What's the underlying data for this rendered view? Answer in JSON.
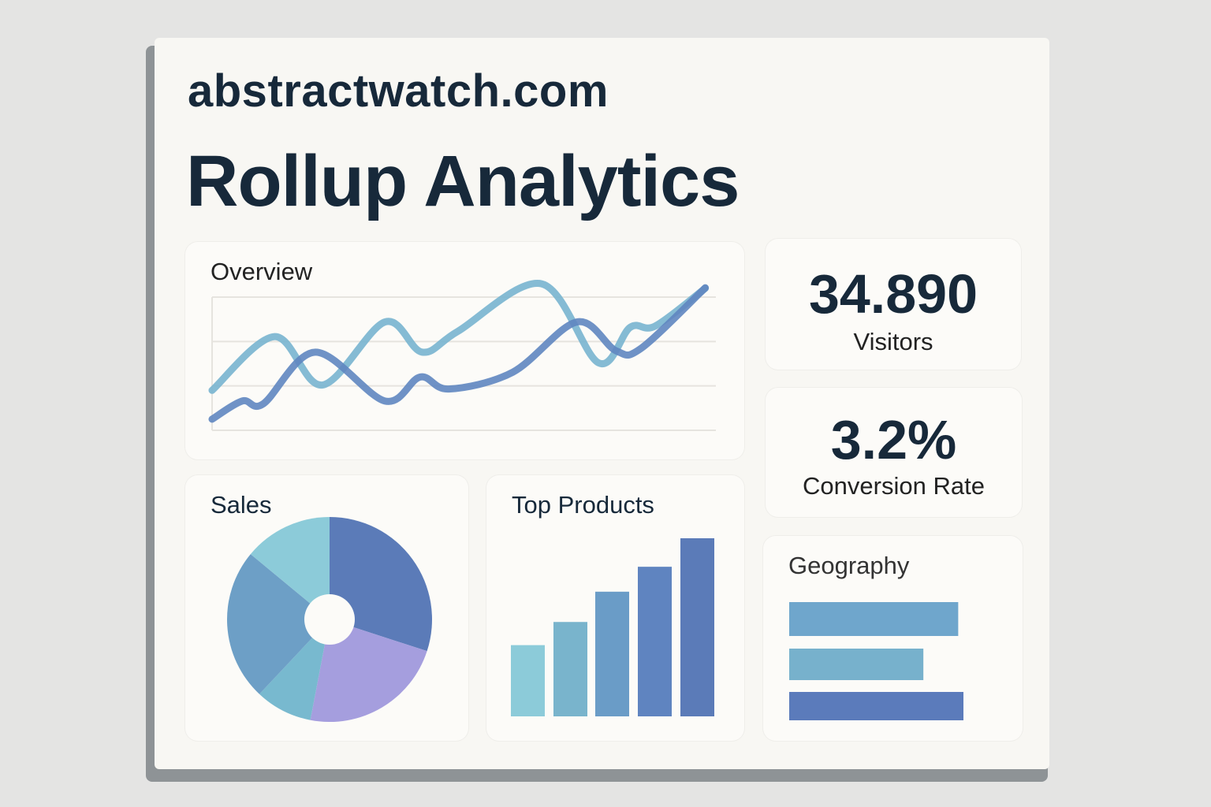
{
  "header": {
    "site": "abstractwatch.com",
    "title": "Rollup Analytics"
  },
  "overview": {
    "title": "Overview"
  },
  "visitors": {
    "value": "34.890",
    "label": "Visitors"
  },
  "conversion": {
    "value": "3.2%",
    "label": "Conversion Rate"
  },
  "sales": {
    "title": "Sales"
  },
  "top_products": {
    "title": "Top Products"
  },
  "geography": {
    "title": "Geography"
  },
  "chart_data": [
    {
      "type": "line",
      "title": "Overview",
      "ylim": [
        0,
        3
      ],
      "grid": true,
      "series": [
        {
          "color": "#78b4cf",
          "x": [
            0,
            12.4,
            21.9,
            34.3,
            41.7,
            48.8,
            65.4,
            76.7,
            83.0,
            88.0,
            97.9
          ],
          "y": [
            0.9,
            2.11,
            1.02,
            2.44,
            1.76,
            2.23,
            3.3,
            1.52,
            2.32,
            2.35,
            3.2
          ]
        },
        {
          "color": "#5f86c0",
          "x": [
            0,
            6,
            10.2,
            20.5,
            34.3,
            41.3,
            47,
            59.7,
            72.4,
            80.2,
            85.2,
            97.9
          ],
          "y": [
            0.25,
            0.66,
            0.6,
            1.76,
            0.66,
            1.2,
            0.93,
            1.31,
            2.44,
            1.79,
            1.85,
            3.21
          ]
        }
      ]
    },
    {
      "type": "pie",
      "title": "Sales",
      "donut": true,
      "values": [
        30,
        23,
        9,
        24,
        14
      ],
      "colors": [
        "#5b7bb8",
        "#a59ede",
        "#78b9cf",
        "#6d9fc6",
        "#8ccbd9"
      ]
    },
    {
      "type": "bar",
      "title": "Top Products",
      "values": [
        40,
        53,
        70,
        84,
        100
      ],
      "colors": [
        "#8ccbd9",
        "#79b4cc",
        "#6a9cc7",
        "#5f84c0",
        "#5b7bb8"
      ]
    },
    {
      "type": "bar",
      "orientation": "horizontal",
      "title": "Geography",
      "values": [
        97,
        77,
        100
      ],
      "colors": [
        "#6fa6cc",
        "#77b1cc",
        "#5b7bbb"
      ]
    }
  ]
}
